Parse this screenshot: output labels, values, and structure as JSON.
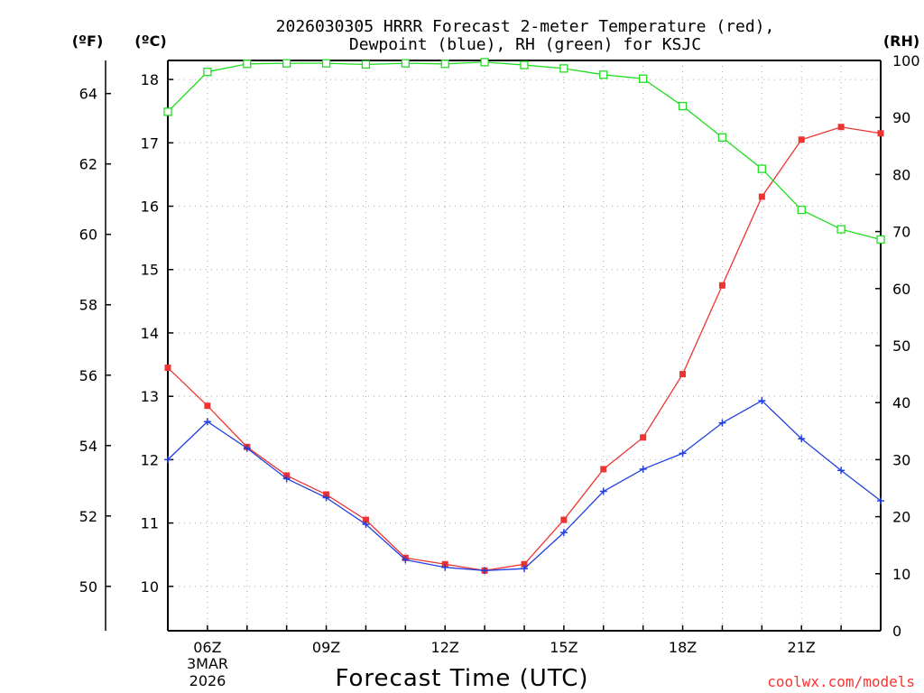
{
  "chart_data": {
    "type": "line",
    "title_line1": "2026030305 HRRR Forecast 2-meter Temperature (red),",
    "title_line2": "Dewpoint (blue), RH (green) for KSJC",
    "xlabel": "Forecast Time (UTC)",
    "credit": "coolwx.com/models",
    "unit_left_f": "(ºF)",
    "unit_left_c": "(ºC)",
    "unit_right": "(RH)",
    "x_hours": [
      5,
      6,
      7,
      8,
      9,
      10,
      11,
      12,
      13,
      14,
      15,
      16,
      17,
      18,
      19,
      20,
      21,
      22,
      23
    ],
    "x_range": [
      5,
      23
    ],
    "x_ticks": [
      {
        "hour": 6,
        "label": "06Z"
      },
      {
        "hour": 9,
        "label": "09Z"
      },
      {
        "hour": 12,
        "label": "12Z"
      },
      {
        "hour": 15,
        "label": "15Z"
      },
      {
        "hour": 18,
        "label": "18Z"
      },
      {
        "hour": 21,
        "label": "21Z"
      }
    ],
    "date_label_line1": "3MAR",
    "date_label_line2": "2026",
    "c_range": [
      9.3,
      18.3
    ],
    "c_ticks": [
      "10",
      "11",
      "12",
      "13",
      "14",
      "15",
      "16",
      "17",
      "18"
    ],
    "f_ticks": [
      "50",
      "52",
      "54",
      "56",
      "58",
      "60",
      "62",
      "64"
    ],
    "rh_range": [
      0,
      100
    ],
    "rh_ticks": [
      "0",
      "10",
      "20",
      "30",
      "40",
      "50",
      "60",
      "70",
      "80",
      "90",
      "100"
    ],
    "series": [
      {
        "name": "Temperature",
        "unit": "C",
        "color": "#ee3333",
        "values": [
          13.45,
          12.85,
          12.2,
          11.75,
          11.45,
          11.05,
          10.45,
          10.35,
          10.25,
          10.35,
          11.05,
          11.85,
          12.35,
          13.35,
          14.75,
          16.15,
          17.05,
          17.25,
          17.15
        ]
      },
      {
        "name": "Dewpoint",
        "unit": "C",
        "color": "#2040e0",
        "values": [
          12.0,
          12.6,
          12.18,
          11.7,
          11.4,
          10.98,
          10.42,
          10.3,
          10.25,
          10.28,
          10.85,
          11.5,
          11.85,
          12.1,
          12.58,
          12.93,
          12.33,
          11.83,
          11.35
        ]
      },
      {
        "name": "RH",
        "unit": "%",
        "color": "#22dd22",
        "values": [
          91,
          98,
          99.4,
          99.5,
          99.5,
          99.3,
          99.5,
          99.4,
          99.7,
          99.2,
          98.6,
          97.5,
          96.8,
          92,
          86.5,
          81,
          73.8,
          70.4,
          68.6
        ]
      }
    ]
  }
}
